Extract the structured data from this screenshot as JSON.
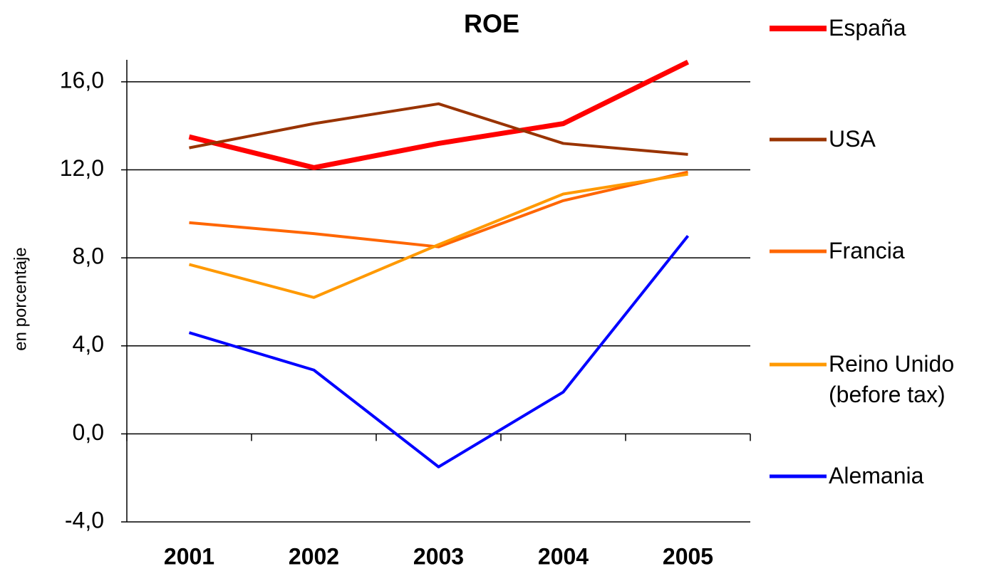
{
  "chart_data": {
    "type": "line",
    "title": "ROE",
    "y_label": "en porcentaje",
    "categories": [
      "2001",
      "2002",
      "2003",
      "2004",
      "2005"
    ],
    "series": [
      {
        "name": "España",
        "color": "#ff0000",
        "values": [
          13.5,
          12.1,
          13.2,
          14.1,
          16.9
        ]
      },
      {
        "name": "USA",
        "color": "#993300",
        "values": [
          13.0,
          14.1,
          15.0,
          13.2,
          12.7
        ]
      },
      {
        "name": "Francia",
        "color": "#ff6600",
        "values": [
          9.6,
          9.1,
          8.5,
          10.6,
          11.9
        ]
      },
      {
        "name": "Reino Unido (before tax)",
        "color": "#ff9900",
        "values": [
          7.7,
          6.2,
          8.6,
          10.9,
          11.8
        ]
      },
      {
        "name": "Alemania",
        "color": "#0000ff",
        "values": [
          4.6,
          2.9,
          -1.5,
          1.9,
          9.0
        ]
      }
    ],
    "ylim": [
      -4,
      17
    ],
    "yticks": [
      {
        "value": -4,
        "label": "-4,0"
      },
      {
        "value": 0,
        "label": "0,0"
      },
      {
        "value": 4,
        "label": "4,0"
      },
      {
        "value": 8,
        "label": "8,0"
      },
      {
        "value": 12,
        "label": "12,0"
      },
      {
        "value": 16,
        "label": "16,0"
      }
    ],
    "grid": true,
    "legend": "right"
  }
}
